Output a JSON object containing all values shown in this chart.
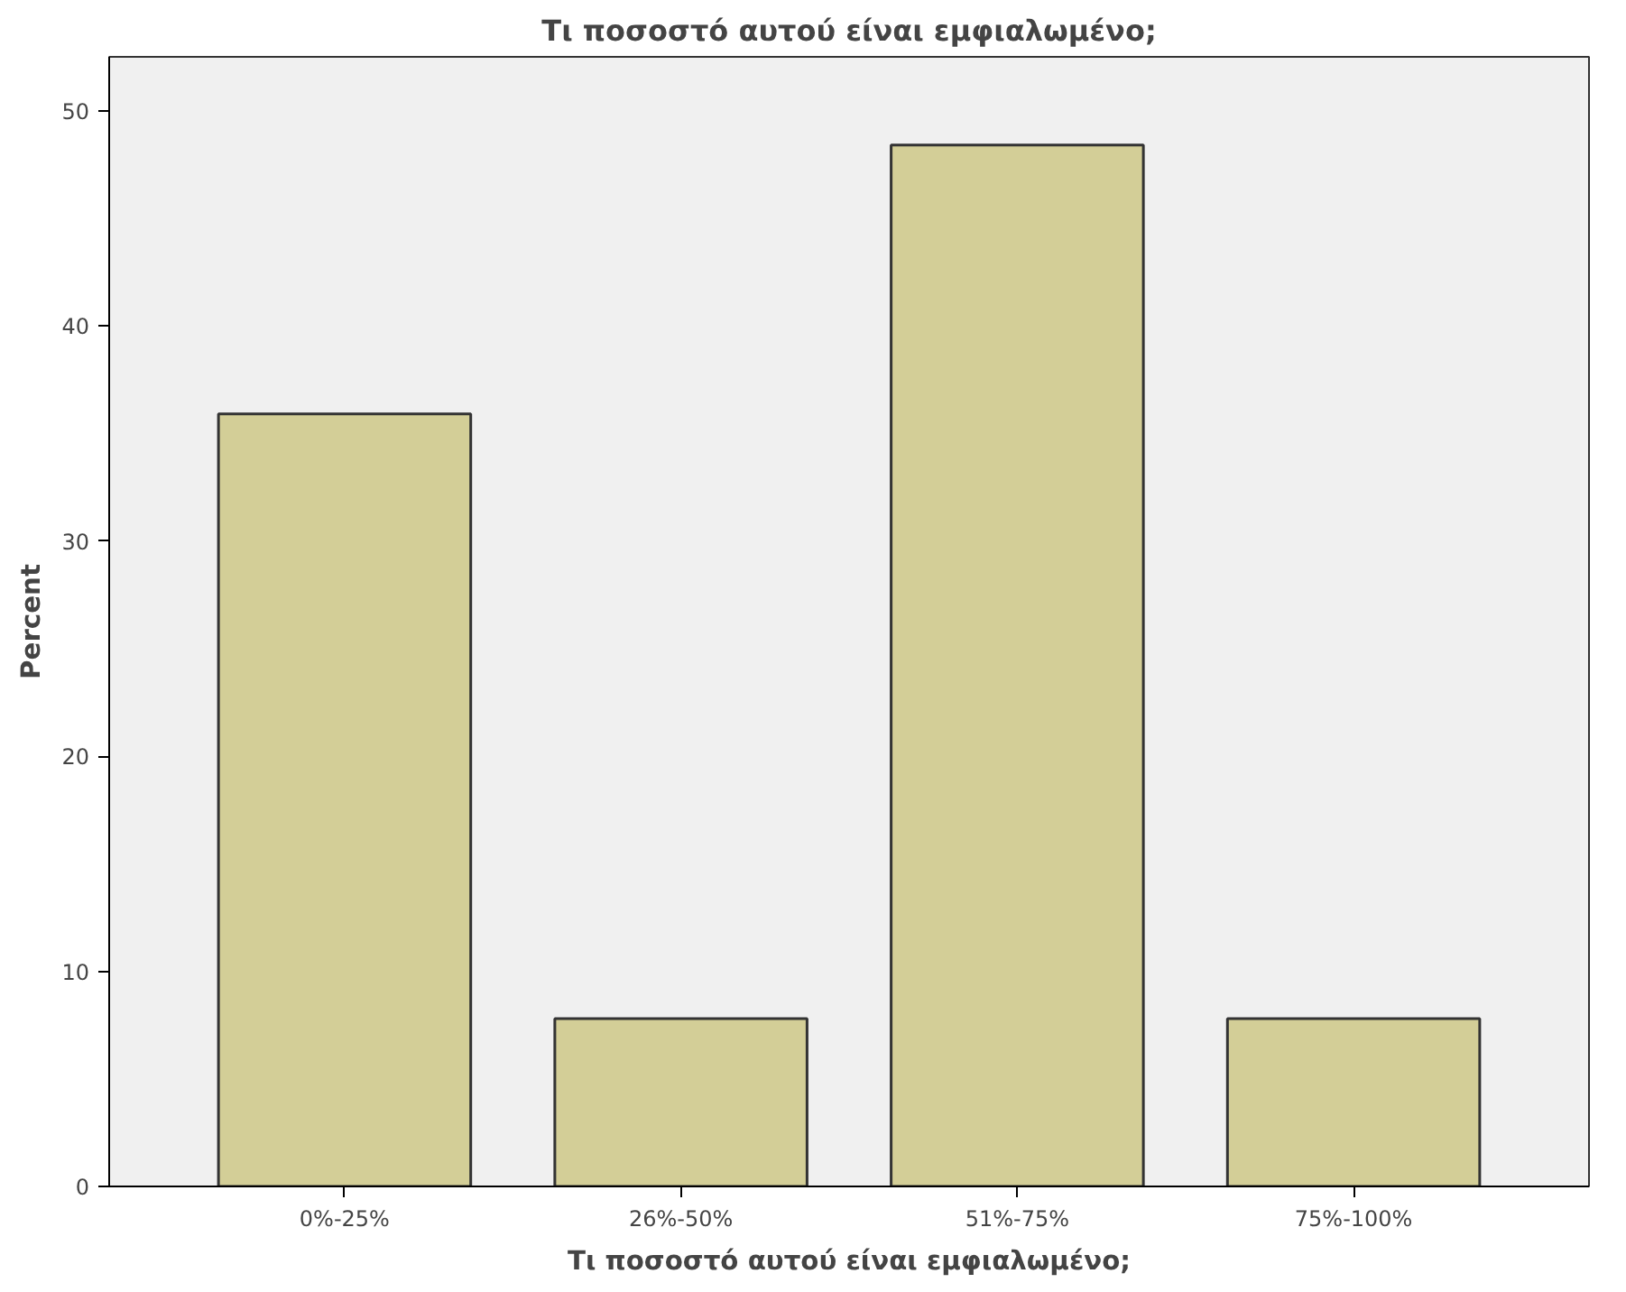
{
  "chart_data": {
    "type": "bar",
    "title": "Τι ποσοστό αυτού είναι εμφιαλωμένο;",
    "xlabel": "Τι ποσοστό αυτού είναι εμφιαλωμένο;",
    "ylabel": "Percent",
    "categories": [
      "0%-25%",
      "26%-50%",
      "51%-75%",
      "75%-100%"
    ],
    "values": [
      35.9,
      7.8,
      48.4,
      7.8
    ],
    "color": "#d3ce97",
    "ylim": [
      0,
      52.5
    ],
    "yticks": [
      0,
      10,
      20,
      30,
      40,
      50
    ],
    "grid": false
  }
}
